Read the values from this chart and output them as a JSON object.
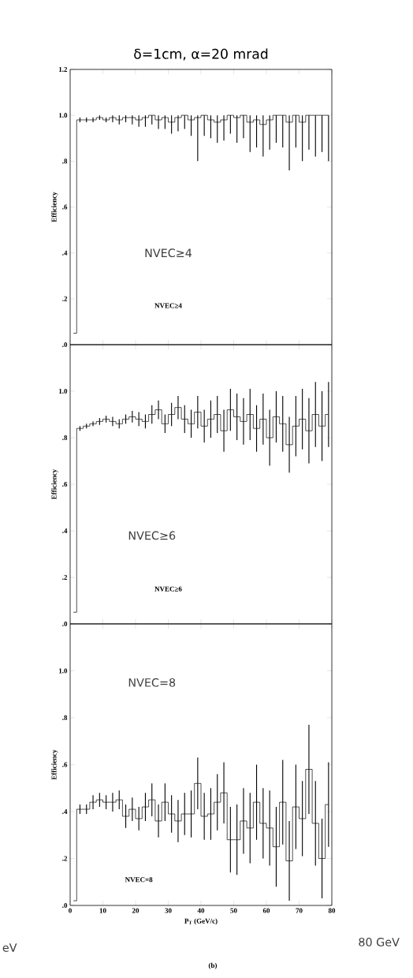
{
  "chart_data": [
    {
      "type": "step",
      "title": "δ=1cm, α=20 mrad",
      "ylabel": "Efficiency",
      "tick_labels": "y",
      "xlim": [
        0,
        80
      ],
      "xticks": [
        0,
        10,
        20,
        30,
        40,
        50,
        60,
        70,
        80
      ],
      "ylim": [
        0,
        1.2
      ],
      "yticks": [
        {
          "value": 0,
          "label": ".0"
        },
        {
          "value": 0.2,
          "label": ".2"
        },
        {
          "value": 0.4,
          "label": ".4"
        },
        {
          "value": 0.6,
          "label": ".6"
        },
        {
          "value": 0.8,
          "label": ".8"
        },
        {
          "value": 1.0,
          "label": "1.0"
        },
        {
          "value": 1.2,
          "label": "1.2"
        }
      ],
      "x": [
        1,
        3,
        5,
        7,
        9,
        11,
        13,
        15,
        17,
        19,
        21,
        23,
        25,
        27,
        29,
        31,
        33,
        35,
        37,
        39,
        41,
        43,
        45,
        47,
        49,
        51,
        53,
        55,
        57,
        59,
        61,
        63,
        65,
        67,
        69,
        71,
        73,
        75,
        77,
        79
      ],
      "values": [
        0.05,
        0.98,
        0.98,
        0.98,
        0.99,
        0.98,
        0.99,
        0.98,
        0.99,
        0.99,
        0.98,
        0.99,
        1.0,
        0.98,
        0.99,
        0.97,
        0.99,
        1.0,
        0.98,
        0.99,
        1.0,
        0.98,
        0.97,
        0.98,
        1.0,
        0.99,
        1.0,
        0.97,
        0.98,
        0.96,
        0.98,
        1.0,
        1.0,
        0.97,
        1.0,
        0.97,
        1.0,
        1.0,
        1.0,
        1.0
      ],
      "errors": [
        null,
        [
          0.97,
          0.99
        ],
        [
          0.97,
          0.99
        ],
        [
          0.97,
          0.99
        ],
        [
          0.98,
          1.0
        ],
        [
          0.97,
          0.99
        ],
        [
          0.97,
          1.0
        ],
        [
          0.96,
          1.0
        ],
        [
          0.97,
          1.0
        ],
        [
          0.96,
          1.0
        ],
        [
          0.95,
          1.0
        ],
        [
          0.95,
          1.0
        ],
        [
          0.96,
          1.0
        ],
        [
          0.94,
          1.0
        ],
        [
          0.94,
          1.0
        ],
        [
          0.92,
          1.0
        ],
        [
          0.93,
          1.0
        ],
        [
          0.94,
          1.0
        ],
        [
          0.91,
          1.0
        ],
        [
          0.8,
          1.0
        ],
        [
          0.91,
          1.0
        ],
        [
          0.9,
          1.0
        ],
        [
          0.88,
          1.0
        ],
        [
          0.89,
          1.0
        ],
        [
          0.92,
          1.0
        ],
        [
          0.88,
          1.0
        ],
        [
          0.9,
          1.0
        ],
        [
          0.84,
          1.0
        ],
        [
          0.86,
          1.0
        ],
        [
          0.82,
          1.0
        ],
        [
          0.85,
          1.0
        ],
        [
          0.88,
          1.0
        ],
        [
          0.86,
          1.0
        ],
        [
          0.76,
          1.0
        ],
        [
          0.86,
          1.0
        ],
        [
          0.8,
          1.0
        ],
        [
          0.85,
          1.0
        ],
        [
          0.82,
          1.0
        ],
        [
          0.84,
          1.0
        ],
        [
          0.8,
          1.0
        ]
      ],
      "annotations": [
        "NVEC≥4",
        "NVEC≥4"
      ]
    },
    {
      "type": "step",
      "ylabel": "Efficiency",
      "tick_labels": "y",
      "xlim": [
        0,
        80
      ],
      "xticks": [
        0,
        10,
        20,
        30,
        40,
        50,
        60,
        70,
        80
      ],
      "ylim": [
        0,
        1.2
      ],
      "yticks": [
        {
          "value": 0,
          "label": ".0"
        },
        {
          "value": 0.2,
          "label": ".2"
        },
        {
          "value": 0.4,
          "label": ".4"
        },
        {
          "value": 0.6,
          "label": ".6"
        },
        {
          "value": 0.8,
          "label": ".8"
        },
        {
          "value": 1.0,
          "label": "1.0"
        }
      ],
      "x": [
        1,
        3,
        5,
        7,
        9,
        11,
        13,
        15,
        17,
        19,
        21,
        23,
        25,
        27,
        29,
        31,
        33,
        35,
        37,
        39,
        41,
        43,
        45,
        47,
        49,
        51,
        53,
        55,
        57,
        59,
        61,
        63,
        65,
        67,
        69,
        71,
        73,
        75,
        77,
        79
      ],
      "values": [
        0.05,
        0.84,
        0.85,
        0.86,
        0.87,
        0.88,
        0.87,
        0.86,
        0.88,
        0.89,
        0.88,
        0.87,
        0.9,
        0.92,
        0.86,
        0.9,
        0.93,
        0.88,
        0.86,
        0.91,
        0.85,
        0.88,
        0.9,
        0.83,
        0.92,
        0.89,
        0.87,
        0.9,
        0.84,
        0.88,
        0.8,
        0.89,
        0.86,
        0.77,
        0.85,
        0.88,
        0.83,
        0.9,
        0.85,
        0.9
      ],
      "errors": [
        null,
        0.01,
        0.01,
        0.01,
        0.015,
        0.015,
        0.02,
        0.02,
        0.02,
        0.025,
        0.03,
        0.03,
        0.04,
        0.04,
        0.04,
        0.05,
        0.05,
        0.06,
        0.06,
        0.07,
        0.07,
        0.08,
        0.08,
        0.09,
        0.09,
        0.1,
        0.1,
        0.11,
        0.1,
        0.11,
        0.12,
        0.11,
        0.12,
        0.12,
        0.13,
        0.13,
        0.14,
        0.14,
        0.15,
        0.14
      ],
      "annotations": [
        "NVEC≥6",
        "NVEC≥6"
      ]
    },
    {
      "type": "step",
      "ylabel": "Efficiency",
      "xlabel": "P$_{T}$ (GeV/c)",
      "xlim": [
        0,
        80
      ],
      "xticks": [
        0,
        10,
        20,
        30,
        40,
        50,
        60,
        70,
        80
      ],
      "ylim": [
        0,
        1.2
      ],
      "yticks": [
        {
          "value": 0,
          "label": ".0"
        },
        {
          "value": 0.2,
          "label": ".2"
        },
        {
          "value": 0.4,
          "label": ".4"
        },
        {
          "value": 0.6,
          "label": ".6"
        },
        {
          "value": 0.8,
          "label": ".8"
        },
        {
          "value": 1.0,
          "label": "1.0"
        }
      ],
      "x": [
        1,
        3,
        5,
        7,
        9,
        11,
        13,
        15,
        17,
        19,
        21,
        23,
        25,
        27,
        29,
        31,
        33,
        35,
        37,
        39,
        41,
        43,
        45,
        47,
        49,
        51,
        53,
        55,
        57,
        59,
        61,
        63,
        65,
        67,
        69,
        71,
        73,
        75,
        77,
        79
      ],
      "values": [
        0.02,
        0.41,
        0.41,
        0.44,
        0.45,
        0.44,
        0.44,
        0.45,
        0.38,
        0.41,
        0.37,
        0.42,
        0.45,
        0.36,
        0.44,
        0.39,
        0.36,
        0.39,
        0.39,
        0.52,
        0.38,
        0.39,
        0.44,
        0.48,
        0.28,
        0.28,
        0.36,
        0.33,
        0.44,
        0.35,
        0.33,
        0.25,
        0.44,
        0.19,
        0.42,
        0.37,
        0.58,
        0.35,
        0.2,
        0.43
      ],
      "errors": [
        null,
        0.02,
        0.02,
        0.03,
        0.03,
        0.03,
        0.04,
        0.04,
        0.05,
        0.05,
        0.05,
        0.06,
        0.07,
        0.07,
        0.08,
        0.08,
        0.09,
        0.09,
        0.1,
        0.11,
        0.1,
        0.11,
        0.12,
        0.13,
        0.14,
        0.15,
        0.14,
        0.15,
        0.16,
        0.15,
        0.16,
        0.17,
        0.18,
        0.17,
        0.18,
        0.16,
        0.19,
        0.18,
        0.17,
        0.18
      ],
      "annotations": [
        "NVEC=8",
        "NVEC=8",
        "(b)",
        "80 GeV",
        "eV"
      ]
    }
  ]
}
